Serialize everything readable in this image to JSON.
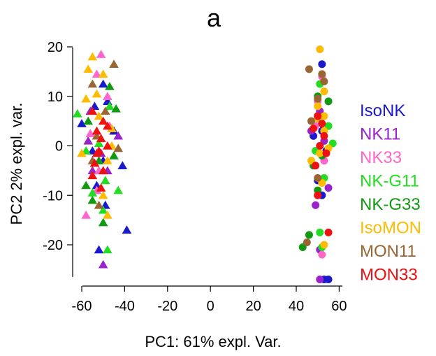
{
  "chart_data": {
    "type": "scatter",
    "title": "a",
    "xlabel": "PC1: 61% expl. Var.",
    "ylabel": "PC2 2% expl. var.",
    "xlim": [
      -65,
      62
    ],
    "ylim": [
      -29,
      22
    ],
    "xticks": [
      -60,
      -40,
      -20,
      0,
      20,
      40,
      60
    ],
    "yticks": [
      -20,
      -10,
      0,
      10,
      20
    ],
    "x_tick_labels": [
      "-60",
      "-40",
      "-20",
      "0",
      "20",
      "40",
      "60"
    ],
    "y_tick_labels": [
      "-20",
      "-10",
      "0",
      "10",
      "20"
    ],
    "grid": false,
    "legend_position": "right",
    "marker_note": "triangles = left cluster, circles = right cluster",
    "series": [
      {
        "name": "IsoNK",
        "color": "#1a1acc",
        "triangles": [
          [
            -50,
            12.5
          ],
          [
            -54,
            8
          ],
          [
            -48,
            9
          ],
          [
            -60,
            4.5
          ],
          [
            -45,
            3
          ],
          [
            -55,
            -1
          ],
          [
            -50,
            -3
          ],
          [
            -53,
            -8
          ],
          [
            -49,
            -12
          ],
          [
            -41,
            -4
          ],
          [
            -39,
            -17
          ],
          [
            -52,
            -21
          ]
        ],
        "circles": [
          [
            52,
            16.5
          ],
          [
            50,
            6
          ],
          [
            52,
            3
          ],
          [
            48,
            2
          ],
          [
            54,
            -1
          ],
          [
            50,
            -7
          ],
          [
            52,
            -10
          ],
          [
            53,
            -27
          ],
          [
            55,
            -27
          ]
        ]
      },
      {
        "name": "NK11",
        "color": "#9922cc",
        "triangles": [
          [
            -56,
            7
          ],
          [
            -57,
            1
          ],
          [
            -51,
            -1.5
          ],
          [
            -48,
            -5
          ],
          [
            -43,
            2
          ],
          [
            -50,
            -24
          ],
          [
            -55,
            -5
          ]
        ],
        "circles": [
          [
            51,
            7
          ],
          [
            47,
            3
          ],
          [
            53,
            1
          ],
          [
            55,
            -8.5
          ],
          [
            49,
            -12
          ],
          [
            51,
            -27
          ],
          [
            51,
            -21
          ]
        ]
      },
      {
        "name": "NK33",
        "color": "#ff66cc",
        "triangles": [
          [
            -51,
            18.5
          ],
          [
            -53,
            14.5
          ],
          [
            -48,
            10
          ],
          [
            -56,
            2.5
          ],
          [
            -47,
            4
          ],
          [
            -52,
            -5
          ],
          [
            -58,
            -14
          ],
          [
            -53,
            -9
          ]
        ],
        "circles": [
          [
            52,
            14
          ],
          [
            50,
            9
          ],
          [
            49,
            4
          ],
          [
            53,
            -3
          ],
          [
            52,
            -22
          ]
        ]
      },
      {
        "name": "NK-G11",
        "color": "#22dd22",
        "triangles": [
          [
            -62,
            6.5
          ],
          [
            -58,
            -1
          ],
          [
            -47,
            8
          ],
          [
            -52,
            0.5
          ],
          [
            -49,
            -7
          ],
          [
            -55,
            -9.5
          ],
          [
            -43,
            -9
          ],
          [
            -50,
            -13
          ],
          [
            -48,
            -21
          ]
        ],
        "circles": [
          [
            51,
            12.5
          ],
          [
            55,
            4
          ],
          [
            49,
            -1
          ],
          [
            57,
            0.5
          ],
          [
            53,
            -6.5
          ],
          [
            51,
            -17.5
          ],
          [
            52,
            -20.5
          ]
        ]
      },
      {
        "name": "NK-G33",
        "color": "#119911",
        "triangles": [
          [
            -47,
            12
          ],
          [
            -44,
            7.5
          ],
          [
            -57,
            5
          ],
          [
            -52,
            -3
          ],
          [
            -45,
            -2
          ],
          [
            -58,
            -8
          ],
          [
            -50,
            -15.5
          ],
          [
            -55,
            -11
          ]
        ],
        "circles": [
          [
            55,
            9
          ],
          [
            50,
            10
          ],
          [
            52,
            -2
          ],
          [
            48,
            -4
          ],
          [
            50,
            -9
          ],
          [
            46,
            -18
          ],
          [
            43,
            -20.5
          ]
        ]
      },
      {
        "name": "IsoMON",
        "color": "#ffbb00",
        "triangles": [
          [
            -55,
            18
          ],
          [
            -57,
            15.5
          ],
          [
            -50,
            14.5
          ],
          [
            -53,
            10.5
          ],
          [
            -46,
            3.5
          ],
          [
            -58,
            9.5
          ],
          [
            -52,
            6
          ],
          [
            -60,
            -1.5
          ],
          [
            -48,
            -3
          ],
          [
            -46,
            0
          ],
          [
            -55,
            -6
          ],
          [
            -50,
            -10
          ],
          [
            -48,
            -14
          ]
        ],
        "circles": [
          [
            51,
            19.5
          ],
          [
            53,
            11
          ],
          [
            50,
            8
          ],
          [
            53,
            6
          ],
          [
            55,
            -0.5
          ],
          [
            47,
            -3
          ],
          [
            51,
            -1.5
          ],
          [
            53,
            3
          ],
          [
            52,
            -7.5
          ],
          [
            50,
            5.5
          ],
          [
            53,
            -20
          ]
        ]
      },
      {
        "name": "MON11",
        "color": "#996633",
        "triangles": [
          [
            -45,
            16.5
          ],
          [
            -55,
            12.5
          ],
          [
            -49,
            7
          ],
          [
            -53,
            2
          ],
          [
            -43,
            -0.5
          ],
          [
            -55,
            -3
          ],
          [
            -52,
            -12
          ]
        ],
        "circles": [
          [
            46,
            15.5
          ],
          [
            52,
            14.5
          ],
          [
            53,
            13
          ],
          [
            50,
            9.5
          ],
          [
            47,
            5
          ],
          [
            50,
            -6.5
          ],
          [
            45,
            -19.5
          ]
        ]
      },
      {
        "name": "MON33",
        "color": "#ee1111",
        "triangles": [
          [
            -55,
            7
          ],
          [
            -50,
            5
          ],
          [
            -48,
            4
          ],
          [
            -53,
            3
          ],
          [
            -51,
            1.5
          ],
          [
            -52,
            -1
          ],
          [
            -48,
            0
          ],
          [
            -54,
            -3.5
          ],
          [
            -50,
            -5
          ],
          [
            -55,
            -6
          ],
          [
            -51,
            -8.5
          ],
          [
            -53,
            -1.5
          ]
        ],
        "circles": [
          [
            50,
            6
          ],
          [
            48,
            3.5
          ],
          [
            53,
            2
          ],
          [
            51,
            0
          ],
          [
            54,
            -1.5
          ],
          [
            49,
            -4
          ],
          [
            52,
            4.5
          ],
          [
            50,
            -10
          ],
          [
            55,
            -17.5
          ]
        ]
      }
    ]
  }
}
